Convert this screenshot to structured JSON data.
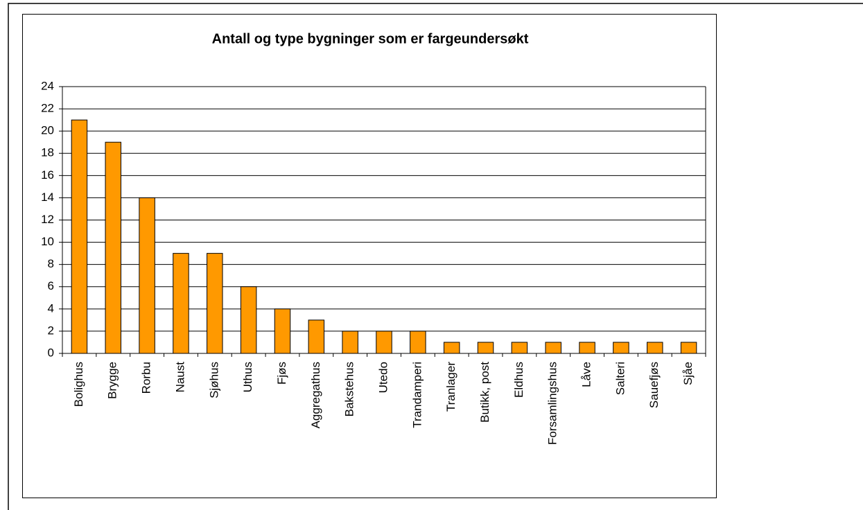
{
  "chart_data": {
    "type": "bar",
    "title": "Antall og type bygninger som er fargeundersøkt",
    "categories": [
      "Bolighus",
      "Brygge",
      "Rorbu",
      "Naust",
      "Sjøhus",
      "Uthus",
      "Fjøs",
      "Aggregathus",
      "Bakstehus",
      "Utedo",
      "Trandamperi",
      "Tranlager",
      "Butikk, post",
      "Eldhus",
      "Forsamlingshus",
      "Låve",
      "Salteri",
      "Sauefjøs",
      "Sjåe"
    ],
    "values": [
      21,
      19,
      14,
      9,
      9,
      6,
      4,
      3,
      2,
      2,
      2,
      1,
      1,
      1,
      1,
      1,
      1,
      1,
      1
    ],
    "color": "#ff9900",
    "ylim": [
      0,
      24
    ],
    "yticks": [
      0,
      2,
      4,
      6,
      8,
      10,
      12,
      14,
      16,
      18,
      20,
      22,
      24
    ],
    "grid": true
  }
}
